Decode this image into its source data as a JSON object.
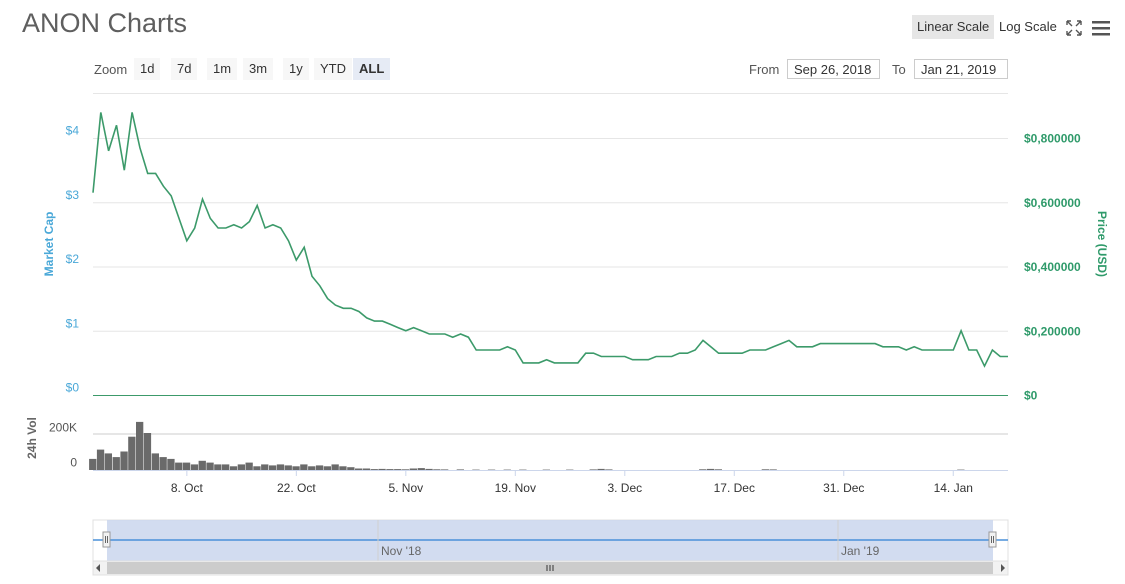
{
  "header": {
    "title": "ANON Charts",
    "linear_scale": "Linear Scale",
    "log_scale": "Log Scale",
    "icons": [
      "fullscreen-icon",
      "menu-icon"
    ]
  },
  "toolbar": {
    "zoom_label": "Zoom",
    "zoom_buttons": [
      "1d",
      "7d",
      "1m",
      "3m",
      "1y",
      "YTD",
      "ALL"
    ],
    "active_zoom": "ALL",
    "from_label": "From",
    "from_value": "Sep 26, 2018",
    "to_label": "To",
    "to_value": "Jan 21, 2019"
  },
  "colors": {
    "price_line": "#3c9a6a",
    "market_cap_axis": "#4aa8d8",
    "price_axis": "#2f9a6a",
    "volume": "#6a6a6a",
    "navigator_fill": "#cdd8ee",
    "navigator_line": "#4a90d9"
  },
  "chart_data": {
    "type": "line",
    "title": "ANON Charts",
    "x_range": [
      "2018-09-26",
      "2019-01-21"
    ],
    "x_ticks": [
      "8. Oct",
      "22. Oct",
      "5. Nov",
      "19. Nov",
      "3. Dec",
      "17. Dec",
      "31. Dec",
      "14. Jan"
    ],
    "left_axis": {
      "label": "Market Cap",
      "ticks": [
        "$0",
        "$1",
        "$2",
        "$3",
        "$4"
      ],
      "range": [
        0,
        4.25
      ]
    },
    "right_axis": {
      "label": "Price (USD)",
      "ticks": [
        "$0",
        "$0,200000",
        "$0,400000",
        "$0,600000",
        "$0,800000"
      ],
      "range": [
        0,
        0.85
      ]
    },
    "volume_axis": {
      "label": "24h Vol",
      "ticks": [
        "0",
        "200K"
      ],
      "range": [
        0,
        400000
      ]
    },
    "series": [
      {
        "values": [
          [
            "2018-09-26",
            0.63
          ],
          [
            "2018-09-27",
            0.88
          ],
          [
            "2018-09-28",
            0.76
          ],
          [
            "2018-09-29",
            0.84
          ],
          [
            "2018-09-30",
            0.7
          ],
          [
            "2018-10-01",
            0.88
          ],
          [
            "2018-10-02",
            0.77
          ],
          [
            "2018-10-03",
            0.69
          ],
          [
            "2018-10-04",
            0.69
          ],
          [
            "2018-10-05",
            0.65
          ],
          [
            "2018-10-06",
            0.62
          ],
          [
            "2018-10-07",
            0.55
          ],
          [
            "2018-10-08",
            0.48
          ],
          [
            "2018-10-09",
            0.52
          ],
          [
            "2018-10-10",
            0.61
          ],
          [
            "2018-10-11",
            0.55
          ],
          [
            "2018-10-12",
            0.52
          ],
          [
            "2018-10-13",
            0.52
          ],
          [
            "2018-10-14",
            0.53
          ],
          [
            "2018-10-15",
            0.52
          ],
          [
            "2018-10-16",
            0.54
          ],
          [
            "2018-10-17",
            0.59
          ],
          [
            "2018-10-18",
            0.52
          ],
          [
            "2018-10-19",
            0.53
          ],
          [
            "2018-10-20",
            0.52
          ],
          [
            "2018-10-21",
            0.48
          ],
          [
            "2018-10-22",
            0.42
          ],
          [
            "2018-10-23",
            0.46
          ],
          [
            "2018-10-24",
            0.37
          ],
          [
            "2018-10-25",
            0.34
          ],
          [
            "2018-10-26",
            0.3
          ],
          [
            "2018-10-27",
            0.28
          ],
          [
            "2018-10-28",
            0.27
          ],
          [
            "2018-10-29",
            0.27
          ],
          [
            "2018-10-30",
            0.26
          ],
          [
            "2018-10-31",
            0.24
          ],
          [
            "2018-11-01",
            0.23
          ],
          [
            "2018-11-02",
            0.23
          ],
          [
            "2018-11-03",
            0.22
          ],
          [
            "2018-11-04",
            0.21
          ],
          [
            "2018-11-05",
            0.2
          ],
          [
            "2018-11-06",
            0.21
          ],
          [
            "2018-11-07",
            0.2
          ],
          [
            "2018-11-08",
            0.19
          ],
          [
            "2018-11-09",
            0.19
          ],
          [
            "2018-11-10",
            0.19
          ],
          [
            "2018-11-11",
            0.18
          ],
          [
            "2018-11-12",
            0.19
          ],
          [
            "2018-11-13",
            0.18
          ],
          [
            "2018-11-14",
            0.14
          ],
          [
            "2018-11-15",
            0.14
          ],
          [
            "2018-11-16",
            0.14
          ],
          [
            "2018-11-17",
            0.14
          ],
          [
            "2018-11-18",
            0.15
          ],
          [
            "2018-11-19",
            0.14
          ],
          [
            "2018-11-20",
            0.1
          ],
          [
            "2018-11-21",
            0.1
          ],
          [
            "2018-11-22",
            0.1
          ],
          [
            "2018-11-23",
            0.11
          ],
          [
            "2018-11-24",
            0.1
          ],
          [
            "2018-11-25",
            0.1
          ],
          [
            "2018-11-26",
            0.1
          ],
          [
            "2018-11-27",
            0.1
          ],
          [
            "2018-11-28",
            0.13
          ],
          [
            "2018-11-29",
            0.13
          ],
          [
            "2018-11-30",
            0.12
          ],
          [
            "2018-12-01",
            0.12
          ],
          [
            "2018-12-02",
            0.12
          ],
          [
            "2018-12-03",
            0.12
          ],
          [
            "2018-12-04",
            0.11
          ],
          [
            "2018-12-05",
            0.11
          ],
          [
            "2018-12-06",
            0.11
          ],
          [
            "2018-12-07",
            0.12
          ],
          [
            "2018-12-08",
            0.12
          ],
          [
            "2018-12-09",
            0.12
          ],
          [
            "2018-12-10",
            0.13
          ],
          [
            "2018-12-11",
            0.13
          ],
          [
            "2018-12-12",
            0.14
          ],
          [
            "2018-12-13",
            0.17
          ],
          [
            "2018-12-14",
            0.15
          ],
          [
            "2018-12-15",
            0.13
          ],
          [
            "2018-12-16",
            0.13
          ],
          [
            "2018-12-17",
            0.13
          ],
          [
            "2018-12-18",
            0.13
          ],
          [
            "2018-12-19",
            0.14
          ],
          [
            "2018-12-20",
            0.14
          ],
          [
            "2018-12-21",
            0.14
          ],
          [
            "2018-12-22",
            0.15
          ],
          [
            "2018-12-23",
            0.16
          ],
          [
            "2018-12-24",
            0.17
          ],
          [
            "2018-12-25",
            0.15
          ],
          [
            "2018-12-26",
            0.15
          ],
          [
            "2018-12-27",
            0.15
          ],
          [
            "2018-12-28",
            0.16
          ],
          [
            "2018-12-29",
            0.16
          ],
          [
            "2018-12-30",
            0.16
          ],
          [
            "2018-12-31",
            0.16
          ],
          [
            "2019-01-01",
            0.16
          ],
          [
            "2019-01-02",
            0.16
          ],
          [
            "2019-01-03",
            0.16
          ],
          [
            "2019-01-04",
            0.16
          ],
          [
            "2019-01-05",
            0.15
          ],
          [
            "2019-01-06",
            0.15
          ],
          [
            "2019-01-07",
            0.15
          ],
          [
            "2019-01-08",
            0.14
          ],
          [
            "2019-01-09",
            0.15
          ],
          [
            "2019-01-10",
            0.14
          ],
          [
            "2019-01-11",
            0.14
          ],
          [
            "2019-01-12",
            0.14
          ],
          [
            "2019-01-13",
            0.14
          ],
          [
            "2019-01-14",
            0.14
          ],
          [
            "2019-01-15",
            0.2
          ],
          [
            "2019-01-16",
            0.14
          ],
          [
            "2019-01-17",
            0.14
          ],
          [
            "2019-01-18",
            0.09
          ],
          [
            "2019-01-19",
            0.14
          ],
          [
            "2019-01-20",
            0.12
          ],
          [
            "2019-01-21",
            0.12
          ]
        ]
      },
      {
        "values": [
          [
            "2018-09-26",
            60000
          ],
          [
            "2018-09-27",
            110000
          ],
          [
            "2018-09-28",
            90000
          ],
          [
            "2018-09-29",
            70000
          ],
          [
            "2018-09-30",
            100000
          ],
          [
            "2018-10-01",
            180000
          ],
          [
            "2018-10-02",
            260000
          ],
          [
            "2018-10-03",
            200000
          ],
          [
            "2018-10-04",
            90000
          ],
          [
            "2018-10-05",
            70000
          ],
          [
            "2018-10-06",
            60000
          ],
          [
            "2018-10-07",
            40000
          ],
          [
            "2018-10-08",
            40000
          ],
          [
            "2018-10-09",
            30000
          ],
          [
            "2018-10-10",
            50000
          ],
          [
            "2018-10-11",
            40000
          ],
          [
            "2018-10-12",
            30000
          ],
          [
            "2018-10-13",
            30000
          ],
          [
            "2018-10-14",
            20000
          ],
          [
            "2018-10-15",
            30000
          ],
          [
            "2018-10-16",
            40000
          ],
          [
            "2018-10-17",
            20000
          ],
          [
            "2018-10-18",
            30000
          ],
          [
            "2018-10-19",
            25000
          ],
          [
            "2018-10-20",
            30000
          ],
          [
            "2018-10-21",
            25000
          ],
          [
            "2018-10-22",
            20000
          ],
          [
            "2018-10-23",
            30000
          ],
          [
            "2018-10-24",
            20000
          ],
          [
            "2018-10-25",
            25000
          ],
          [
            "2018-10-26",
            20000
          ],
          [
            "2018-10-27",
            30000
          ],
          [
            "2018-10-28",
            20000
          ],
          [
            "2018-10-29",
            15000
          ],
          [
            "2018-10-30",
            8000
          ],
          [
            "2018-10-31",
            8000
          ],
          [
            "2018-11-01",
            5000
          ],
          [
            "2018-11-02",
            6000
          ],
          [
            "2018-11-03",
            5000
          ],
          [
            "2018-11-04",
            5000
          ],
          [
            "2018-11-05",
            4000
          ],
          [
            "2018-11-06",
            8000
          ],
          [
            "2018-11-07",
            10000
          ],
          [
            "2018-11-08",
            6000
          ],
          [
            "2018-11-09",
            4000
          ],
          [
            "2018-11-10",
            3000
          ],
          [
            "2018-11-12",
            3000
          ],
          [
            "2018-11-14",
            2000
          ],
          [
            "2018-11-16",
            2000
          ],
          [
            "2018-11-18",
            2000
          ],
          [
            "2018-11-20",
            2000
          ],
          [
            "2018-11-23",
            2000
          ],
          [
            "2018-11-26",
            2000
          ],
          [
            "2018-11-29",
            3000
          ],
          [
            "2018-11-30",
            6000
          ],
          [
            "2018-12-01",
            3000
          ],
          [
            "2018-12-13",
            4000
          ],
          [
            "2018-12-14",
            6000
          ],
          [
            "2018-12-15",
            4000
          ],
          [
            "2018-12-21",
            4000
          ],
          [
            "2018-12-22",
            3000
          ],
          [
            "2019-01-15",
            2000
          ]
        ]
      }
    ],
    "navigator": {
      "labels": [
        "Nov '18",
        "Jan '19"
      ]
    }
  }
}
